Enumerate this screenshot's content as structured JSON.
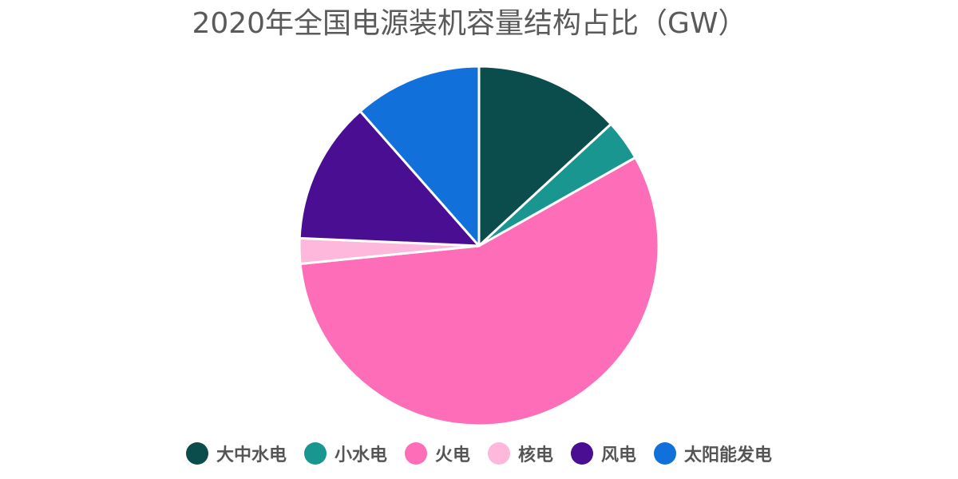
{
  "chart_data": {
    "type": "pie",
    "title": "2020年全国电源装机容量结构占比（GW）",
    "categories": [
      "大中水电",
      "小水电",
      "火电",
      "核电",
      "风电",
      "太阳能发电"
    ],
    "values": [
      289,
      81,
      1245,
      50,
      282,
      253
    ],
    "colors": [
      "#0b4c4c",
      "#1a9690",
      "#fe6db8",
      "#fdb8dc",
      "#4a0e92",
      "#1170da"
    ],
    "start_angle_deg": 0,
    "direction": "clockwise",
    "legend_position": "bottom"
  }
}
